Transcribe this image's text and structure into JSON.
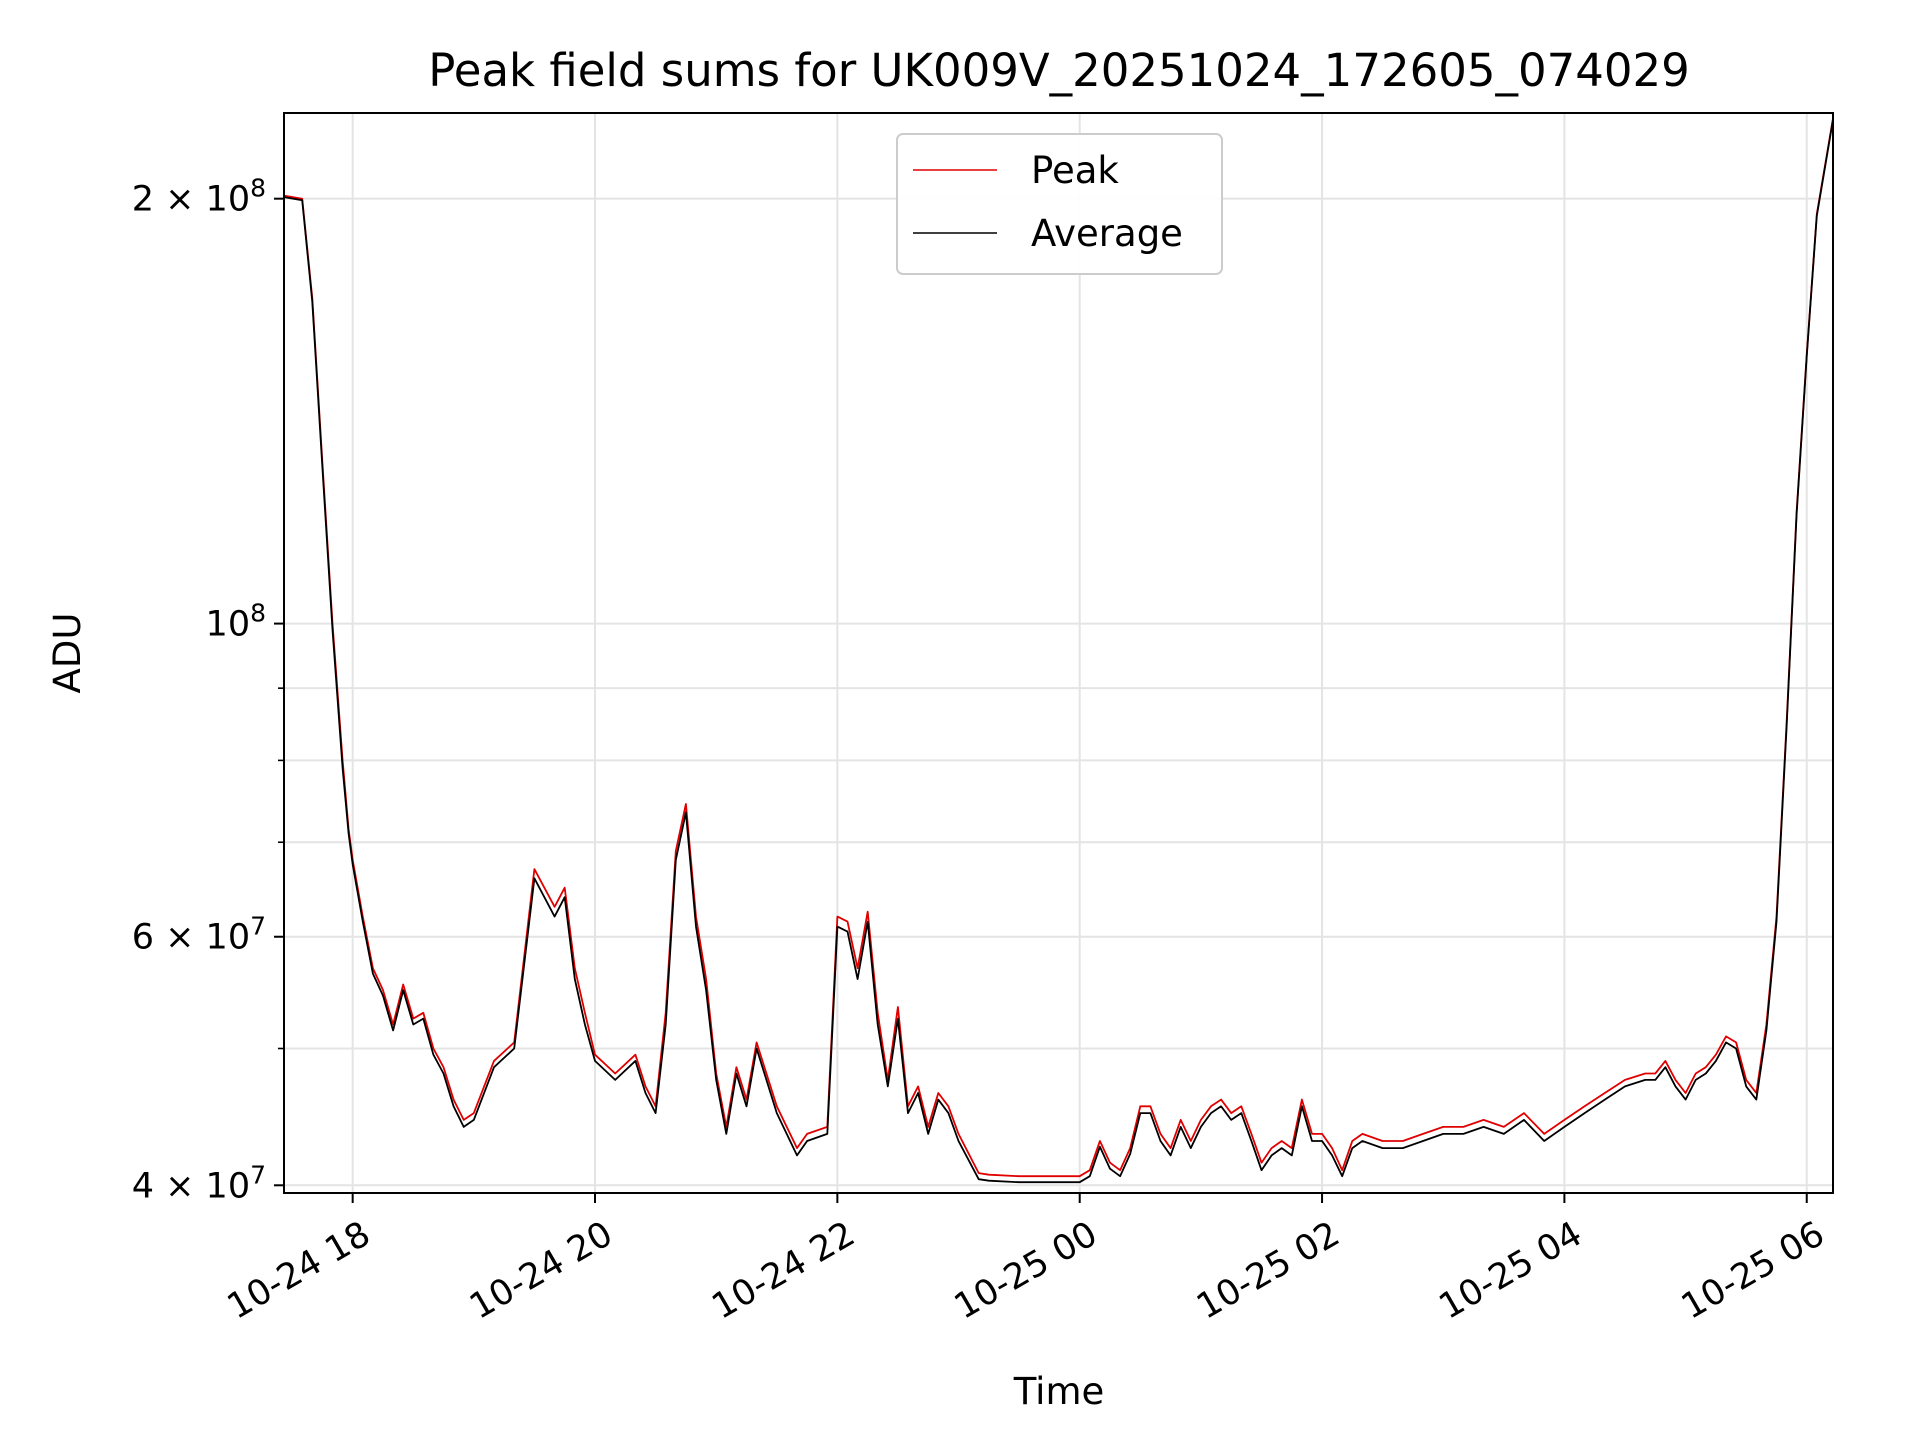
{
  "chart_data": {
    "type": "line",
    "title": "Peak field sums for UK009V_20251024_172605_074029",
    "xlabel": "Time",
    "ylabel": "ADU",
    "x_range": [
      "2025-10-24 17:26",
      "2025-10-25 06:13"
    ],
    "ylim": [
      39500000,
      230000000
    ],
    "y_scale": "log",
    "grid": true,
    "legend_position": "top-center",
    "x_ticks": [
      "10-24 18",
      "10-24 20",
      "10-24 22",
      "10-25 00",
      "10-25 02",
      "10-25 04",
      "10-25 06"
    ],
    "x_tick_times": [
      "2025-10-24 18:00",
      "2025-10-24 20:00",
      "2025-10-24 22:00",
      "2025-10-25 00:00",
      "2025-10-25 02:00",
      "2025-10-25 04:00",
      "2025-10-25 06:00"
    ],
    "y_ticks": [
      {
        "value": 40000000,
        "mantissa": "4",
        "exp": "7"
      },
      {
        "value": 60000000,
        "mantissa": "6",
        "exp": "7"
      },
      {
        "value": 100000000,
        "mantissa": "",
        "exp": "8"
      },
      {
        "value": 200000000,
        "mantissa": "2",
        "exp": "8"
      }
    ],
    "y_minor_ticks": [
      50000000,
      70000000,
      80000000,
      90000000
    ],
    "x": [
      "2025-10-24 17:26",
      "2025-10-24 17:35",
      "2025-10-24 17:40",
      "2025-10-24 17:45",
      "2025-10-24 17:50",
      "2025-10-24 17:55",
      "2025-10-24 17:58",
      "2025-10-24 18:00",
      "2025-10-24 18:05",
      "2025-10-24 18:10",
      "2025-10-24 18:15",
      "2025-10-24 18:20",
      "2025-10-24 18:25",
      "2025-10-24 18:30",
      "2025-10-24 18:35",
      "2025-10-24 18:40",
      "2025-10-24 18:45",
      "2025-10-24 18:50",
      "2025-10-24 18:55",
      "2025-10-24 19:00",
      "2025-10-24 19:10",
      "2025-10-24 19:20",
      "2025-10-24 19:30",
      "2025-10-24 19:40",
      "2025-10-24 19:45",
      "2025-10-24 19:50",
      "2025-10-24 19:55",
      "2025-10-24 20:00",
      "2025-10-24 20:10",
      "2025-10-24 20:20",
      "2025-10-24 20:25",
      "2025-10-24 20:30",
      "2025-10-24 20:35",
      "2025-10-24 20:40",
      "2025-10-24 20:45",
      "2025-10-24 20:50",
      "2025-10-24 20:55",
      "2025-10-24 21:00",
      "2025-10-24 21:05",
      "2025-10-24 21:10",
      "2025-10-24 21:15",
      "2025-10-24 21:20",
      "2025-10-24 21:30",
      "2025-10-24 21:40",
      "2025-10-24 21:45",
      "2025-10-24 21:55",
      "2025-10-24 22:00",
      "2025-10-24 22:05",
      "2025-10-24 22:10",
      "2025-10-24 22:15",
      "2025-10-24 22:20",
      "2025-10-24 22:25",
      "2025-10-24 22:30",
      "2025-10-24 22:35",
      "2025-10-24 22:40",
      "2025-10-24 22:45",
      "2025-10-24 22:50",
      "2025-10-24 22:55",
      "2025-10-24 23:00",
      "2025-10-24 23:10",
      "2025-10-24 23:15",
      "2025-10-24 23:30",
      "2025-10-24 23:45",
      "2025-10-25 00:00",
      "2025-10-25 00:05",
      "2025-10-25 00:10",
      "2025-10-25 00:15",
      "2025-10-25 00:20",
      "2025-10-25 00:25",
      "2025-10-25 00:30",
      "2025-10-25 00:35",
      "2025-10-25 00:40",
      "2025-10-25 00:45",
      "2025-10-25 00:50",
      "2025-10-25 00:55",
      "2025-10-25 01:00",
      "2025-10-25 01:05",
      "2025-10-25 01:10",
      "2025-10-25 01:15",
      "2025-10-25 01:20",
      "2025-10-25 01:25",
      "2025-10-25 01:30",
      "2025-10-25 01:35",
      "2025-10-25 01:40",
      "2025-10-25 01:45",
      "2025-10-25 01:50",
      "2025-10-25 01:55",
      "2025-10-25 02:00",
      "2025-10-25 02:05",
      "2025-10-25 02:10",
      "2025-10-25 02:15",
      "2025-10-25 02:20",
      "2025-10-25 02:30",
      "2025-10-25 02:40",
      "2025-10-25 02:50",
      "2025-10-25 03:00",
      "2025-10-25 03:10",
      "2025-10-25 03:20",
      "2025-10-25 03:30",
      "2025-10-25 03:40",
      "2025-10-25 03:50",
      "2025-10-25 04:00",
      "2025-10-25 04:10",
      "2025-10-25 04:20",
      "2025-10-25 04:30",
      "2025-10-25 04:40",
      "2025-10-25 04:45",
      "2025-10-25 04:50",
      "2025-10-25 04:55",
      "2025-10-25 05:00",
      "2025-10-25 05:05",
      "2025-10-25 05:10",
      "2025-10-25 05:15",
      "2025-10-25 05:20",
      "2025-10-25 05:25",
      "2025-10-25 05:30",
      "2025-10-25 05:35",
      "2025-10-25 05:40",
      "2025-10-25 05:45",
      "2025-10-25 05:50",
      "2025-10-25 05:55",
      "2025-10-25 06:00",
      "2025-10-25 06:05",
      "2025-10-25 06:13"
    ],
    "series": [
      {
        "name": "Peak",
        "color": "#e00000",
        "values": [
          201000000,
          200000000,
          170000000,
          130000000,
          100000000,
          80000000,
          71500000,
          68000000,
          62000000,
          57000000,
          55000000,
          52000000,
          55500000,
          52500000,
          53000000,
          50000000,
          48500000,
          46000000,
          44500000,
          45000000,
          49000000,
          50500000,
          67000000,
          63000000,
          65000000,
          57000000,
          53000000,
          49500000,
          48000000,
          49500000,
          47000000,
          45500000,
          53000000,
          69000000,
          74500000,
          62000000,
          56000000,
          48000000,
          44000000,
          48500000,
          46000000,
          50500000,
          45500000,
          42500000,
          43500000,
          44000000,
          62000000,
          61500000,
          57000000,
          62500000,
          53000000,
          47500000,
          53500000,
          45500000,
          47000000,
          44000000,
          46500000,
          45500000,
          43500000,
          40800000,
          40700000,
          40600000,
          40600000,
          40600000,
          41000000,
          43000000,
          41500000,
          41000000,
          42500000,
          45500000,
          45500000,
          43500000,
          42500000,
          44500000,
          43000000,
          44500000,
          45500000,
          46000000,
          45000000,
          45500000,
          43500000,
          41500000,
          42500000,
          43000000,
          42500000,
          46000000,
          43500000,
          43500000,
          42500000,
          41000000,
          43000000,
          43500000,
          43000000,
          43000000,
          43500000,
          44000000,
          44000000,
          44500000,
          44000000,
          45000000,
          43500000,
          44500000,
          45500000,
          46500000,
          47500000,
          48000000,
          48000000,
          49000000,
          47500000,
          46500000,
          48000000,
          48500000,
          49500000,
          51000000,
          50500000,
          47500000,
          46500000,
          52000000,
          62000000,
          85000000,
          120000000,
          155000000,
          195000000,
          228000000
        ]
      },
      {
        "name": "Average",
        "color": "#000000",
        "values": [
          200500000,
          199500000,
          169000000,
          129000000,
          99000000,
          79000000,
          71000000,
          67500000,
          61500000,
          56500000,
          54500000,
          51500000,
          55000000,
          52000000,
          52500000,
          49500000,
          48000000,
          45500000,
          44000000,
          44500000,
          48500000,
          50000000,
          66000000,
          62000000,
          64000000,
          56000000,
          52000000,
          49000000,
          47500000,
          49000000,
          46500000,
          45000000,
          52000000,
          68000000,
          73500000,
          61000000,
          55000000,
          47500000,
          43500000,
          48000000,
          45500000,
          50000000,
          45000000,
          42000000,
          43000000,
          43500000,
          61000000,
          60500000,
          56000000,
          61500000,
          52000000,
          47000000,
          52500000,
          45000000,
          46500000,
          43500000,
          46000000,
          45000000,
          43000000,
          40400000,
          40300000,
          40200000,
          40200000,
          40200000,
          40600000,
          42600000,
          41100000,
          40600000,
          42100000,
          45000000,
          45000000,
          43000000,
          42000000,
          44000000,
          42500000,
          44000000,
          45000000,
          45500000,
          44500000,
          45000000,
          43000000,
          41000000,
          42000000,
          42500000,
          42000000,
          45500000,
          43000000,
          43000000,
          42000000,
          40600000,
          42500000,
          43000000,
          42500000,
          42500000,
          43000000,
          43500000,
          43500000,
          44000000,
          43500000,
          44500000,
          43000000,
          44000000,
          45000000,
          46000000,
          47000000,
          47500000,
          47500000,
          48500000,
          47000000,
          46000000,
          47500000,
          48000000,
          49000000,
          50500000,
          50000000,
          47000000,
          46000000,
          51500000,
          61500000,
          84500000,
          119500000,
          154500000,
          194500000,
          227500000
        ]
      }
    ]
  }
}
